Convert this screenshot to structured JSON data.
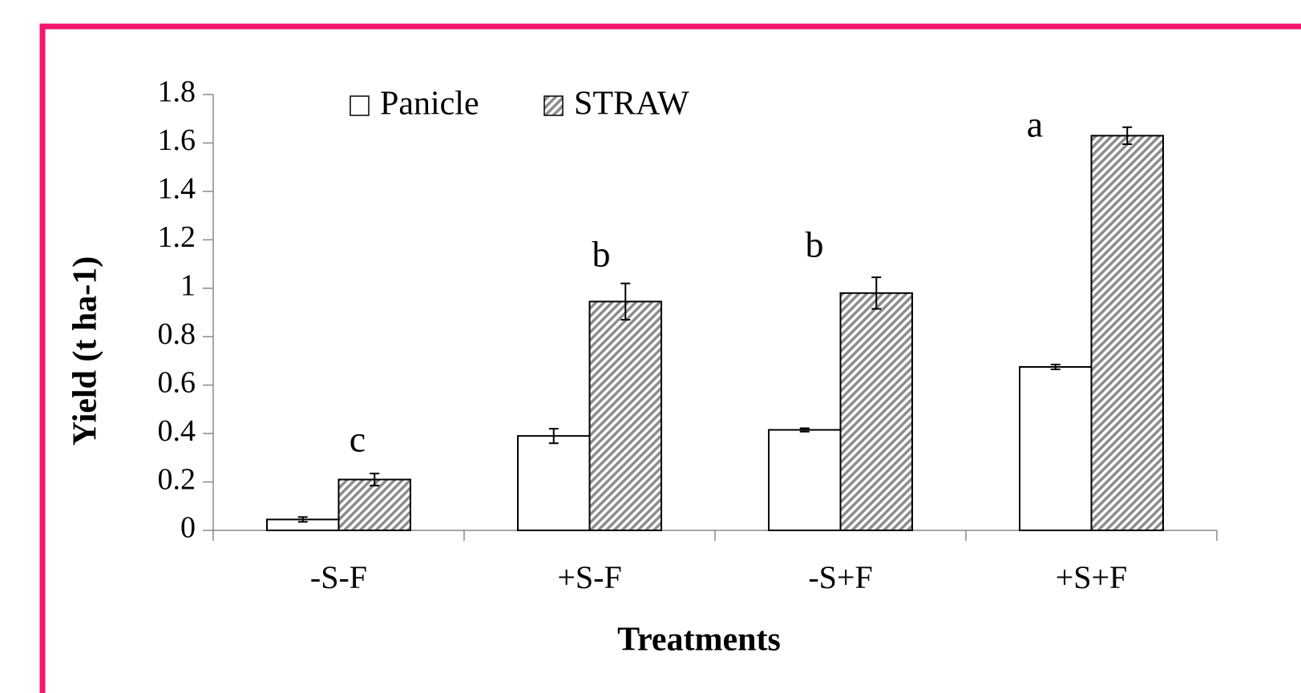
{
  "chart_data": {
    "type": "bar",
    "x_label": "Treatments",
    "y_label": "Yield (t ha-1)",
    "categories": [
      "-S-F",
      "+S-F",
      "-S+F",
      "+S+F"
    ],
    "series": [
      {
        "name": "Panicle",
        "color": "#ffffff",
        "values": [
          0.045,
          0.39,
          0.415,
          0.675
        ],
        "errors": [
          0.01,
          0.03,
          0.007,
          0.01
        ]
      },
      {
        "name": "STRAW",
        "color": "#8c8c8c",
        "hatch": true,
        "values": [
          0.21,
          0.945,
          0.98,
          1.63
        ],
        "errors": [
          0.025,
          0.075,
          0.065,
          0.035
        ]
      }
    ],
    "annotations": [
      "c",
      "b",
      "b",
      "a"
    ],
    "ylim": [
      0,
      1.8
    ],
    "yticks": [
      0,
      0.2,
      0.4,
      0.6,
      0.8,
      1,
      1.2,
      1.4,
      1.6,
      1.8
    ],
    "grid": false,
    "legend": "top"
  }
}
